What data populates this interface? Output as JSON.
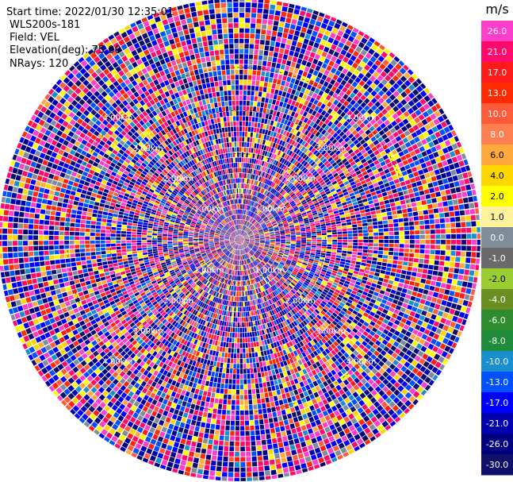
{
  "info": {
    "start_time": "Start time: 2022/01/30 12:35:01",
    "instrument": "WLS200s-181",
    "field": "Field: VEL",
    "elevation": "Elevation(deg): 75.00",
    "nrays": "NRays: 120"
  },
  "chart_data": {
    "type": "ppi",
    "field": "VEL",
    "start_time": "2022/01/30 12:35:01",
    "instrument": "WLS200s-181",
    "elevation_deg": 75.0,
    "nrays": 120,
    "max_range_km": 5.6,
    "range_rings_km": [
      1.0,
      2.0,
      3.0,
      4.0
    ],
    "range_ring_labels": [
      "1.00km",
      "2.00km",
      "3.00km",
      "4.00km"
    ],
    "colorbar": {
      "unit": "m/s",
      "labels": [
        "26.0",
        "21.0",
        "17.0",
        "13.0",
        "10.0",
        "8.0",
        "6.0",
        "4.0",
        "2.0",
        "1.0",
        "0.0",
        "-1.0",
        "-2.0",
        "-4.0",
        "-6.0",
        "-8.0",
        "-10.0",
        "-13.0",
        "-17.0",
        "-21.0",
        "-26.0",
        "-30.0"
      ],
      "colors": [
        "#ff3dcb",
        "#ff0a6c",
        "#ff1a1a",
        "#ff2a00",
        "#ff5a3a",
        "#ff7f50",
        "#ffaa3a",
        "#ffd700",
        "#ffff00",
        "#fff29a",
        "#7f8c99",
        "#6a6a6a",
        "#9acd32",
        "#6b8e23",
        "#2e8b2e",
        "#1e8c3a",
        "#1a8fcf",
        "#0050ff",
        "#0000ff",
        "#0000b0",
        "#000080",
        "#10106a"
      ]
    }
  }
}
